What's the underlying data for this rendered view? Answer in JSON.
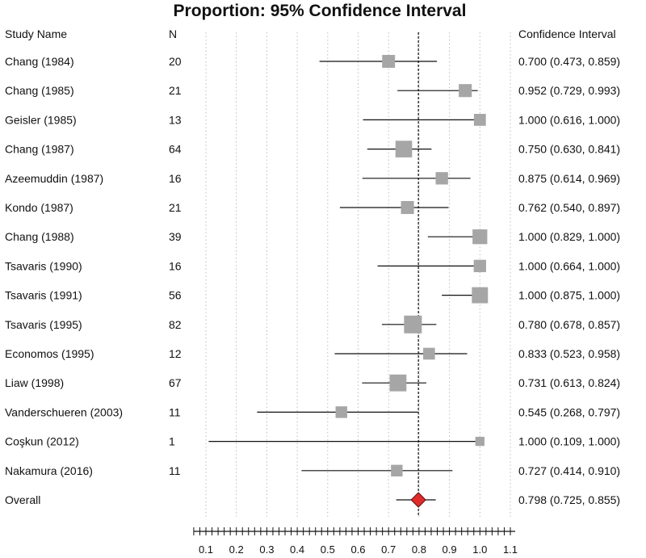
{
  "chart_data": {
    "type": "forest",
    "title": "Proportion: 95% Confidence Interval",
    "headers": {
      "study": "Study Name",
      "n": "N",
      "ci": "Confidence Interval"
    },
    "xlim": [
      0.1,
      1.1
    ],
    "x_ticks": [
      "0.1",
      "0.2",
      "0.3",
      "0.4",
      "0.5",
      "0.6",
      "0.7",
      "0.8",
      "0.9",
      "1.0",
      "1.1"
    ],
    "reference_line": 0.798,
    "studies": [
      {
        "name": "Chang (1984)",
        "n": "20",
        "est": 0.7,
        "lo": 0.473,
        "hi": 0.859,
        "ci_text": "0.700 (0.473, 0.859)"
      },
      {
        "name": "Chang (1985)",
        "n": "21",
        "est": 0.952,
        "lo": 0.729,
        "hi": 0.993,
        "ci_text": "0.952 (0.729, 0.993)"
      },
      {
        "name": "Geisler  (1985)",
        "n": "13",
        "est": 1.0,
        "lo": 0.616,
        "hi": 1.0,
        "ci_text": "1.000 (0.616, 1.000)"
      },
      {
        "name": "Chang (1987)",
        "n": "64",
        "est": 0.75,
        "lo": 0.63,
        "hi": 0.841,
        "ci_text": "0.750 (0.630, 0.841)"
      },
      {
        "name": "Azeemuddin  (1987)",
        "n": "16",
        "est": 0.875,
        "lo": 0.614,
        "hi": 0.969,
        "ci_text": "0.875 (0.614, 0.969)"
      },
      {
        "name": "Kondo (1987)",
        "n": "21",
        "est": 0.762,
        "lo": 0.54,
        "hi": 0.897,
        "ci_text": "0.762 (0.540, 0.897)"
      },
      {
        "name": "Chang (1988)",
        "n": "39",
        "est": 1.0,
        "lo": 0.829,
        "hi": 1.0,
        "ci_text": "1.000 (0.829, 1.000)"
      },
      {
        "name": "Tsavaris (1990)",
        "n": "16",
        "est": 1.0,
        "lo": 0.664,
        "hi": 1.0,
        "ci_text": "1.000 (0.664, 1.000)"
      },
      {
        "name": "Tsavaris (1991)",
        "n": "56",
        "est": 1.0,
        "lo": 0.875,
        "hi": 1.0,
        "ci_text": "1.000 (0.875, 1.000)"
      },
      {
        "name": "Tsavaris (1995)",
        "n": "82",
        "est": 0.78,
        "lo": 0.678,
        "hi": 0.857,
        "ci_text": "0.780 (0.678, 0.857)"
      },
      {
        "name": "Economos (1995)",
        "n": "12",
        "est": 0.833,
        "lo": 0.523,
        "hi": 0.958,
        "ci_text": "0.833 (0.523, 0.958)"
      },
      {
        "name": "Liaw  (1998)",
        "n": "67",
        "est": 0.731,
        "lo": 0.613,
        "hi": 0.824,
        "ci_text": "0.731 (0.613, 0.824)"
      },
      {
        "name": " Vanderschueren (2003)",
        "n": "11",
        "est": 0.545,
        "lo": 0.268,
        "hi": 0.797,
        "ci_text": "0.545 (0.268, 0.797)"
      },
      {
        "name": "Coşkun (2012)",
        "n": "1",
        "est": 1.0,
        "lo": 0.109,
        "hi": 1.0,
        "ci_text": "1.000 (0.109, 1.000)"
      },
      {
        "name": " Nakamura (2016)",
        "n": "11",
        "est": 0.727,
        "lo": 0.414,
        "hi": 0.91,
        "ci_text": "0.727 (0.414, 0.910)"
      }
    ],
    "overall": {
      "name": "Overall",
      "est": 0.798,
      "lo": 0.725,
      "hi": 0.855,
      "ci_text": "0.798 (0.725, 0.855)"
    },
    "colors": {
      "square": "#a6a6a6",
      "diamond": "#e02b2b",
      "diamond_stroke": "#5a1010",
      "grid": "#bdbdbd",
      "line": "#111111"
    }
  }
}
